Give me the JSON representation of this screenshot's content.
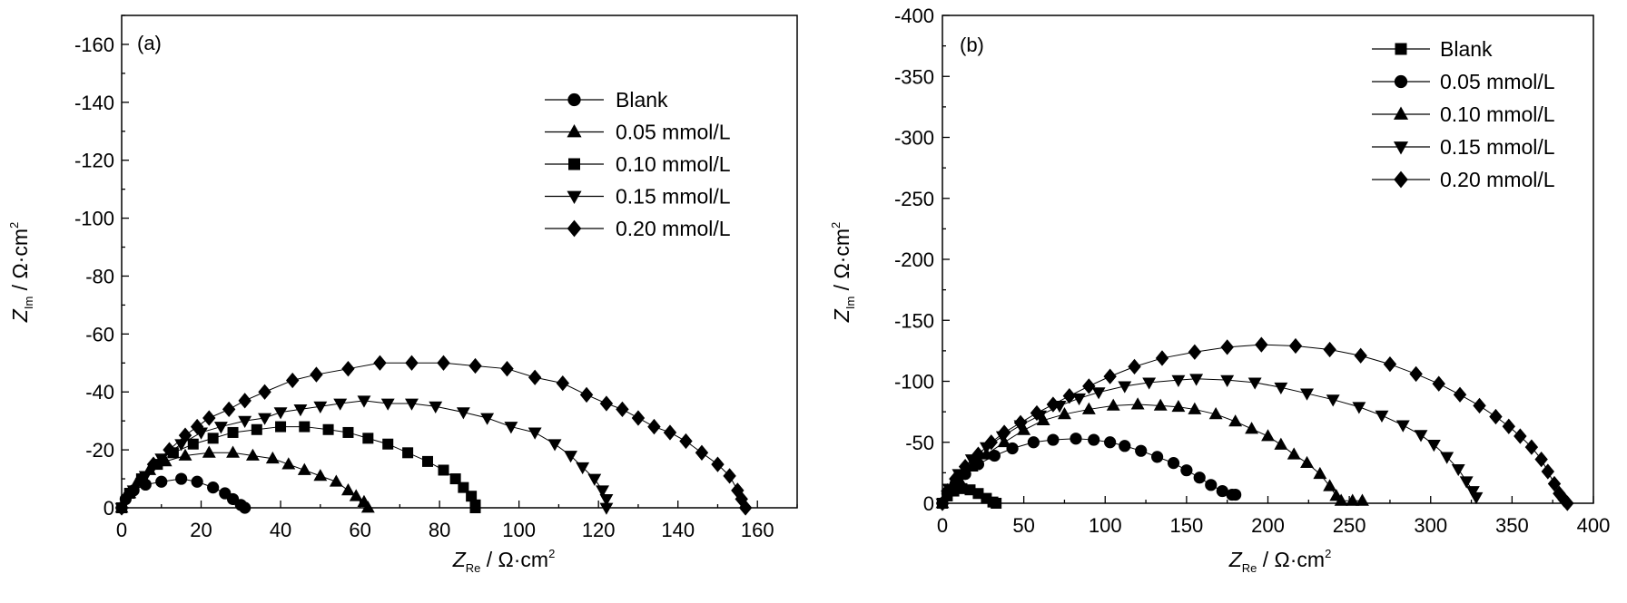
{
  "chart_data": [
    {
      "type": "scatter",
      "panel_label": "(a)",
      "xlabel": {
        "main": "Z",
        "sub": "Re",
        "unit": " / Ω·cm",
        "sup": "2"
      },
      "ylabel": {
        "main": "Z",
        "sub": "Im",
        "unit": " / Ω·cm",
        "sup": "2"
      },
      "xlim": [
        0,
        170
      ],
      "ylim": [
        0,
        -170
      ],
      "xticks": [
        0,
        20,
        40,
        60,
        80,
        100,
        120,
        140,
        160
      ],
      "yticks": [
        0,
        -20,
        -40,
        -60,
        -80,
        -100,
        -120,
        -140,
        -160
      ],
      "legend_position": "top-right",
      "series": [
        {
          "name": "Blank",
          "marker": "circle",
          "points": [
            [
              0,
              0
            ],
            [
              1,
              -3
            ],
            [
              3,
              -6
            ],
            [
              6,
              -8
            ],
            [
              10,
              -9
            ],
            [
              15,
              -10
            ],
            [
              19,
              -9
            ],
            [
              23,
              -7
            ],
            [
              26,
              -5
            ],
            [
              28,
              -3
            ],
            [
              30,
              -1
            ],
            [
              31,
              0
            ]
          ]
        },
        {
          "name": "0.05 mmol/L",
          "marker": "triangle-up",
          "points": [
            [
              0,
              0
            ],
            [
              2,
              -5
            ],
            [
              4,
              -9
            ],
            [
              7,
              -13
            ],
            [
              11,
              -16
            ],
            [
              16,
              -18
            ],
            [
              22,
              -19
            ],
            [
              28,
              -19
            ],
            [
              33,
              -18
            ],
            [
              38,
              -17
            ],
            [
              42,
              -15
            ],
            [
              46,
              -13
            ],
            [
              50,
              -11
            ],
            [
              54,
              -9
            ],
            [
              57,
              -6
            ],
            [
              59,
              -4
            ],
            [
              61,
              -2
            ],
            [
              62,
              0
            ]
          ]
        },
        {
          "name": "0.10 mmol/L",
          "marker": "square",
          "points": [
            [
              0,
              0
            ],
            [
              2,
              -5
            ],
            [
              5,
              -10
            ],
            [
              9,
              -15
            ],
            [
              13,
              -19
            ],
            [
              18,
              -22
            ],
            [
              23,
              -24
            ],
            [
              28,
              -26
            ],
            [
              34,
              -27
            ],
            [
              40,
              -28
            ],
            [
              46,
              -28
            ],
            [
              52,
              -27
            ],
            [
              57,
              -26
            ],
            [
              62,
              -24
            ],
            [
              67,
              -22
            ],
            [
              72,
              -19
            ],
            [
              77,
              -16
            ],
            [
              81,
              -13
            ],
            [
              84,
              -10
            ],
            [
              86,
              -7
            ],
            [
              88,
              -4
            ],
            [
              89,
              -1
            ],
            [
              89,
              0
            ]
          ]
        },
        {
          "name": "0.15 mmol/L",
          "marker": "triangle-down",
          "points": [
            [
              0,
              0
            ],
            [
              3,
              -6
            ],
            [
              6,
              -11
            ],
            [
              10,
              -17
            ],
            [
              15,
              -22
            ],
            [
              20,
              -26
            ],
            [
              25,
              -28
            ],
            [
              31,
              -30
            ],
            [
              36,
              -31
            ],
            [
              40,
              -33
            ],
            [
              45,
              -34
            ],
            [
              50,
              -35
            ],
            [
              55,
              -36
            ],
            [
              61,
              -37
            ],
            [
              67,
              -36
            ],
            [
              73,
              -36
            ],
            [
              79,
              -35
            ],
            [
              86,
              -33
            ],
            [
              92,
              -31
            ],
            [
              98,
              -28
            ],
            [
              104,
              -26
            ],
            [
              109,
              -22
            ],
            [
              113,
              -18
            ],
            [
              116,
              -14
            ],
            [
              119,
              -10
            ],
            [
              121,
              -6
            ],
            [
              122,
              -3
            ],
            [
              122,
              0
            ]
          ]
        },
        {
          "name": "0.20 mmol/L",
          "marker": "diamond",
          "points": [
            [
              0,
              0
            ],
            [
              2,
              -5
            ],
            [
              5,
              -10
            ],
            [
              8,
              -15
            ],
            [
              12,
              -20
            ],
            [
              16,
              -25
            ],
            [
              19,
              -28
            ],
            [
              22,
              -31
            ],
            [
              27,
              -34
            ],
            [
              31,
              -37
            ],
            [
              36,
              -40
            ],
            [
              43,
              -44
            ],
            [
              49,
              -46
            ],
            [
              57,
              -48
            ],
            [
              65,
              -50
            ],
            [
              73,
              -50
            ],
            [
              81,
              -50
            ],
            [
              89,
              -49
            ],
            [
              97,
              -48
            ],
            [
              104,
              -45
            ],
            [
              111,
              -43
            ],
            [
              117,
              -39
            ],
            [
              122,
              -36
            ],
            [
              126,
              -34
            ],
            [
              130,
              -31
            ],
            [
              134,
              -28
            ],
            [
              138,
              -26
            ],
            [
              142,
              -23
            ],
            [
              146,
              -19
            ],
            [
              150,
              -15
            ],
            [
              153,
              -11
            ],
            [
              155,
              -6
            ],
            [
              156,
              -3
            ],
            [
              157,
              0
            ]
          ]
        }
      ]
    },
    {
      "type": "scatter",
      "panel_label": "(b)",
      "xlabel": {
        "main": "Z",
        "sub": "Re",
        "unit": " / Ω·cm",
        "sup": "2"
      },
      "ylabel": {
        "main": "Z",
        "sub": "Im",
        "unit": " / Ω·cm",
        "sup": "2"
      },
      "xlim": [
        0,
        400
      ],
      "ylim": [
        0,
        -400
      ],
      "xticks": [
        0,
        50,
        100,
        150,
        200,
        250,
        300,
        350,
        400
      ],
      "yticks": [
        0,
        -50,
        -100,
        -150,
        -200,
        -250,
        -300,
        -350,
        -400
      ],
      "legend_position": "top-right",
      "series": [
        {
          "name": "Blank",
          "marker": "square",
          "points": [
            [
              0,
              0
            ],
            [
              3,
              -6
            ],
            [
              7,
              -10
            ],
            [
              12,
              -12
            ],
            [
              17,
              -11
            ],
            [
              22,
              -8
            ],
            [
              27,
              -4
            ],
            [
              31,
              -1
            ],
            [
              33,
              0
            ]
          ]
        },
        {
          "name": "0.05 mmol/L",
          "marker": "circle",
          "points": [
            [
              0,
              0
            ],
            [
              3,
              -8
            ],
            [
              8,
              -16
            ],
            [
              14,
              -24
            ],
            [
              22,
              -32
            ],
            [
              32,
              -39
            ],
            [
              43,
              -45
            ],
            [
              56,
              -50
            ],
            [
              68,
              -52
            ],
            [
              82,
              -53
            ],
            [
              93,
              -52
            ],
            [
              103,
              -50
            ],
            [
              112,
              -47
            ],
            [
              122,
              -43
            ],
            [
              132,
              -38
            ],
            [
              142,
              -33
            ],
            [
              150,
              -27
            ],
            [
              158,
              -21
            ],
            [
              165,
              -15
            ],
            [
              172,
              -10
            ],
            [
              178,
              -7
            ],
            [
              180,
              -7
            ]
          ]
        },
        {
          "name": "0.10 mmol/L",
          "marker": "triangle-up",
          "points": [
            [
              0,
              0
            ],
            [
              4,
              -10
            ],
            [
              10,
              -20
            ],
            [
              18,
              -30
            ],
            [
              27,
              -40
            ],
            [
              38,
              -50
            ],
            [
              50,
              -60
            ],
            [
              62,
              -68
            ],
            [
              75,
              -73
            ],
            [
              90,
              -77
            ],
            [
              105,
              -80
            ],
            [
              120,
              -81
            ],
            [
              134,
              -80
            ],
            [
              145,
              -79
            ],
            [
              155,
              -77
            ],
            [
              168,
              -73
            ],
            [
              180,
              -67
            ],
            [
              190,
              -61
            ],
            [
              200,
              -55
            ],
            [
              208,
              -48
            ],
            [
              216,
              -40
            ],
            [
              224,
              -33
            ],
            [
              232,
              -24
            ],
            [
              238,
              -14
            ],
            [
              242,
              -6
            ],
            [
              245,
              -2
            ],
            [
              252,
              -2
            ],
            [
              258,
              -2
            ]
          ]
        },
        {
          "name": "0.15 mmol/L",
          "marker": "triangle-down",
          "points": [
            [
              0,
              0
            ],
            [
              4,
              -12
            ],
            [
              10,
              -24
            ],
            [
              18,
              -36
            ],
            [
              27,
              -46
            ],
            [
              37,
              -55
            ],
            [
              48,
              -64
            ],
            [
              60,
              -72
            ],
            [
              72,
              -80
            ],
            [
              84,
              -86
            ],
            [
              96,
              -91
            ],
            [
              112,
              -96
            ],
            [
              127,
              -99
            ],
            [
              145,
              -101
            ],
            [
              156,
              -102
            ],
            [
              175,
              -101
            ],
            [
              192,
              -99
            ],
            [
              208,
              -95
            ],
            [
              224,
              -90
            ],
            [
              240,
              -85
            ],
            [
              256,
              -79
            ],
            [
              270,
              -72
            ],
            [
              283,
              -64
            ],
            [
              294,
              -56
            ],
            [
              302,
              -48
            ],
            [
              310,
              -38
            ],
            [
              317,
              -28
            ],
            [
              322,
              -18
            ],
            [
              326,
              -10
            ],
            [
              328,
              -5
            ]
          ]
        },
        {
          "name": "0.20 mmol/L",
          "marker": "diamond",
          "points": [
            [
              0,
              0
            ],
            [
              3,
              -10
            ],
            [
              8,
              -20
            ],
            [
              14,
              -30
            ],
            [
              22,
              -40
            ],
            [
              30,
              -50
            ],
            [
              38,
              -58
            ],
            [
              48,
              -66
            ],
            [
              58,
              -74
            ],
            [
              68,
              -81
            ],
            [
              78,
              -88
            ],
            [
              90,
              -96
            ],
            [
              103,
              -104
            ],
            [
              118,
              -112
            ],
            [
              135,
              -119
            ],
            [
              155,
              -124
            ],
            [
              175,
              -128
            ],
            [
              196,
              -130
            ],
            [
              217,
              -129
            ],
            [
              238,
              -126
            ],
            [
              257,
              -121
            ],
            [
              275,
              -114
            ],
            [
              291,
              -106
            ],
            [
              305,
              -98
            ],
            [
              318,
              -89
            ],
            [
              330,
              -80
            ],
            [
              340,
              -71
            ],
            [
              348,
              -63
            ],
            [
              355,
              -55
            ],
            [
              362,
              -46
            ],
            [
              368,
              -36
            ],
            [
              372,
              -26
            ],
            [
              376,
              -16
            ],
            [
              379,
              -8
            ],
            [
              382,
              -3
            ],
            [
              384,
              0
            ]
          ]
        }
      ]
    }
  ]
}
